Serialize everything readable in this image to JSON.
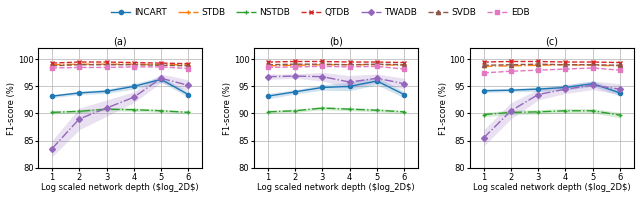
{
  "chart_data": [
    {
      "type": "line",
      "title": "(a)",
      "xlabel": "Log scaled network depth ($log_2D$)",
      "ylabel": "F1-score (%)",
      "x": [
        1,
        2,
        3,
        4,
        5,
        6
      ],
      "xlim": [
        0.5,
        6.5
      ],
      "xticks": [
        1,
        2,
        3,
        4,
        5,
        6
      ],
      "ylim": [
        80,
        102
      ],
      "yticks": [
        80,
        85,
        90,
        95,
        100
      ],
      "grid": true,
      "legend": "upper center",
      "series": [
        {
          "name": "INCART",
          "marker": "circle",
          "line_style": "solid",
          "values": [
            93.2,
            93.8,
            94.1,
            95.0,
            96.3,
            93.5
          ],
          "std": [
            0.3,
            0.3,
            0.4,
            0.5,
            0.5,
            0.5
          ]
        },
        {
          "name": "STDB",
          "marker": "plus",
          "line_style": "dashdot",
          "values": [
            99.0,
            99.1,
            99.1,
            99.1,
            99.0,
            99.0
          ]
        },
        {
          "name": "NSTDB",
          "marker": "plus",
          "line_style": "dashdot",
          "values": [
            90.2,
            90.4,
            90.8,
            90.7,
            90.5,
            90.2
          ],
          "std": [
            0.3,
            0.3,
            0.3,
            0.3,
            0.3,
            0.3
          ]
        },
        {
          "name": "QTDB",
          "marker": "x",
          "line_style": "dashed",
          "values": [
            99.3,
            99.5,
            99.5,
            99.4,
            99.3,
            99.2
          ]
        },
        {
          "name": "TWADB",
          "marker": "diamond",
          "line_style": "dashdot",
          "values": [
            83.5,
            89.0,
            91.0,
            93.0,
            96.5,
            95.2
          ],
          "std": [
            1.5,
            2.0,
            1.5,
            1.0,
            0.8,
            1.0
          ]
        },
        {
          "name": "SVDB",
          "marker": "triangle",
          "line_style": "dashed",
          "values": [
            98.8,
            99.0,
            99.0,
            99.0,
            98.9,
            98.8
          ]
        },
        {
          "name": "EDB",
          "marker": "square",
          "line_style": "dashed",
          "values": [
            98.4,
            98.5,
            98.5,
            98.6,
            98.6,
            98.3
          ]
        }
      ]
    },
    {
      "type": "line",
      "title": "(b)",
      "xlabel": "Log scaled network depth ($log_2D$)",
      "ylabel": "F1-score (%)",
      "x": [
        1,
        2,
        3,
        4,
        5,
        6
      ],
      "xlim": [
        0.5,
        6.5
      ],
      "xticks": [
        1,
        2,
        3,
        4,
        5,
        6
      ],
      "ylim": [
        80,
        102
      ],
      "yticks": [
        80,
        85,
        90,
        95,
        100
      ],
      "grid": true,
      "series": [
        {
          "name": "INCART",
          "marker": "circle",
          "line_style": "solid",
          "values": [
            93.2,
            94.0,
            94.8,
            95.0,
            96.0,
            93.5
          ],
          "std": [
            0.5,
            0.4,
            0.5,
            0.8,
            0.7,
            0.6
          ]
        },
        {
          "name": "STDB",
          "marker": "plus",
          "line_style": "dashdot",
          "values": [
            98.8,
            98.9,
            99.0,
            99.0,
            99.0,
            98.9
          ]
        },
        {
          "name": "NSTDB",
          "marker": "plus",
          "line_style": "dashdot",
          "values": [
            90.3,
            90.5,
            91.0,
            90.8,
            90.6,
            90.3
          ],
          "std": [
            0.3,
            0.3,
            0.3,
            0.3,
            0.3,
            0.3
          ]
        },
        {
          "name": "QTDB",
          "marker": "x",
          "line_style": "dashed",
          "values": [
            99.5,
            99.6,
            99.6,
            99.5,
            99.5,
            99.4
          ]
        },
        {
          "name": "TWADB",
          "marker": "diamond",
          "line_style": "dashdot",
          "values": [
            96.8,
            96.9,
            96.8,
            95.8,
            96.5,
            95.5
          ],
          "std": [
            0.5,
            0.4,
            0.8,
            1.2,
            0.8,
            1.0
          ]
        },
        {
          "name": "SVDB",
          "marker": "triangle",
          "line_style": "dashed",
          "values": [
            99.0,
            99.1,
            99.1,
            99.0,
            99.1,
            99.0
          ]
        },
        {
          "name": "EDB",
          "marker": "square",
          "line_style": "dashed",
          "values": [
            98.5,
            98.6,
            98.7,
            98.6,
            98.7,
            98.2
          ]
        }
      ]
    },
    {
      "type": "line",
      "title": "(c)",
      "xlabel": "Log scaled network depth ($log_2D$)",
      "ylabel": "F1-score (%)",
      "x": [
        1,
        2,
        3,
        4,
        5,
        6
      ],
      "xlim": [
        0.5,
        6.5
      ],
      "xticks": [
        1,
        2,
        3,
        4,
        5,
        6
      ],
      "ylim": [
        80,
        102
      ],
      "yticks": [
        80,
        85,
        90,
        95,
        100
      ],
      "grid": true,
      "series": [
        {
          "name": "INCART",
          "marker": "circle",
          "line_style": "solid",
          "values": [
            94.2,
            94.3,
            94.5,
            94.8,
            95.5,
            93.8
          ],
          "std": [
            0.3,
            0.3,
            0.4,
            0.5,
            0.5,
            0.5
          ]
        },
        {
          "name": "STDB",
          "marker": "plus",
          "line_style": "dashdot",
          "values": [
            98.7,
            98.8,
            98.9,
            99.0,
            98.9,
            98.8
          ]
        },
        {
          "name": "NSTDB",
          "marker": "plus",
          "line_style": "dashdot",
          "values": [
            89.8,
            90.2,
            90.3,
            90.5,
            90.5,
            89.7
          ],
          "std": [
            0.4,
            0.4,
            0.4,
            0.4,
            0.4,
            0.5
          ]
        },
        {
          "name": "QTDB",
          "marker": "x",
          "line_style": "dashed",
          "values": [
            99.5,
            99.6,
            99.6,
            99.5,
            99.5,
            99.4
          ]
        },
        {
          "name": "TWADB",
          "marker": "diamond",
          "line_style": "dashdot",
          "values": [
            85.5,
            90.5,
            93.5,
            94.5,
            95.2,
            94.5
          ],
          "std": [
            1.5,
            1.5,
            1.0,
            0.8,
            0.8,
            1.0
          ]
        },
        {
          "name": "SVDB",
          "marker": "triangle",
          "line_style": "dashed",
          "values": [
            98.9,
            99.0,
            99.1,
            99.0,
            99.0,
            98.9
          ]
        },
        {
          "name": "EDB",
          "marker": "square",
          "line_style": "dashed",
          "values": [
            97.5,
            97.8,
            98.0,
            98.2,
            98.4,
            98.0
          ]
        }
      ]
    }
  ]
}
